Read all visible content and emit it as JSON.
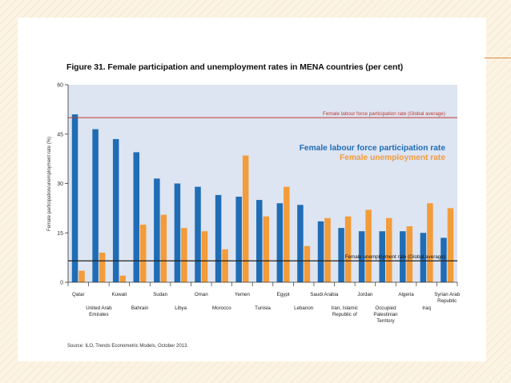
{
  "chart_data": {
    "type": "bar",
    "title": "Figure 31.  Female participation and unemployment rates in MENA countries (per cent)",
    "ylabel": "Female participation/unemployment rate (%)",
    "xlabel": "",
    "ylim": [
      0,
      60
    ],
    "yticks": [
      0,
      15,
      30,
      45,
      60
    ],
    "categories": [
      [
        "Qatar"
      ],
      [
        "United Arab",
        "Emirates"
      ],
      [
        "Kuwait"
      ],
      [
        "Bahrain"
      ],
      [
        "Sudan"
      ],
      [
        "Libya"
      ],
      [
        "Oman"
      ],
      [
        "Morocco"
      ],
      [
        "Yemen"
      ],
      [
        "Tunisia"
      ],
      [
        "Egypt"
      ],
      [
        "Lebanon"
      ],
      [
        "Saudi Arabia"
      ],
      [
        "Iran, Islamic",
        "Republic of"
      ],
      [
        "Jordan"
      ],
      [
        "Occupied",
        "Palestinian",
        "Territory"
      ],
      [
        "Algeria"
      ],
      [
        "Iraq"
      ],
      [
        "Syrian Arab",
        "Republic"
      ]
    ],
    "series": [
      {
        "name": "Female labour force participation rate",
        "color": "#1f6db5",
        "values": [
          51,
          46.5,
          43.5,
          39.5,
          31.5,
          30,
          29,
          26.5,
          26,
          25,
          24,
          23.5,
          18.5,
          16.5,
          15.5,
          15.5,
          15.5,
          15,
          13.5
        ]
      },
      {
        "name": "Female unemployment rate",
        "color": "#f39c3a",
        "values": [
          3.5,
          9,
          2,
          17.5,
          20.5,
          16.5,
          15.5,
          10,
          38.5,
          20,
          29,
          11,
          19.5,
          20,
          22,
          19.5,
          17,
          24,
          22.5
        ]
      }
    ],
    "reference_lines": [
      {
        "label": "Female labour force participation rate (Global average)",
        "value": 50,
        "color": "#c0392b"
      },
      {
        "label": "Female unemployment rate (Global average)",
        "value": 6.5,
        "color": "#222222"
      }
    ],
    "legend": [
      "Female labour force participation rate",
      "Female unemployment rate"
    ],
    "legend_position": "top-right",
    "grid": false,
    "background": "#dde4f2"
  },
  "source": "Source: ILO, Trends Econometric Models, October 2013."
}
